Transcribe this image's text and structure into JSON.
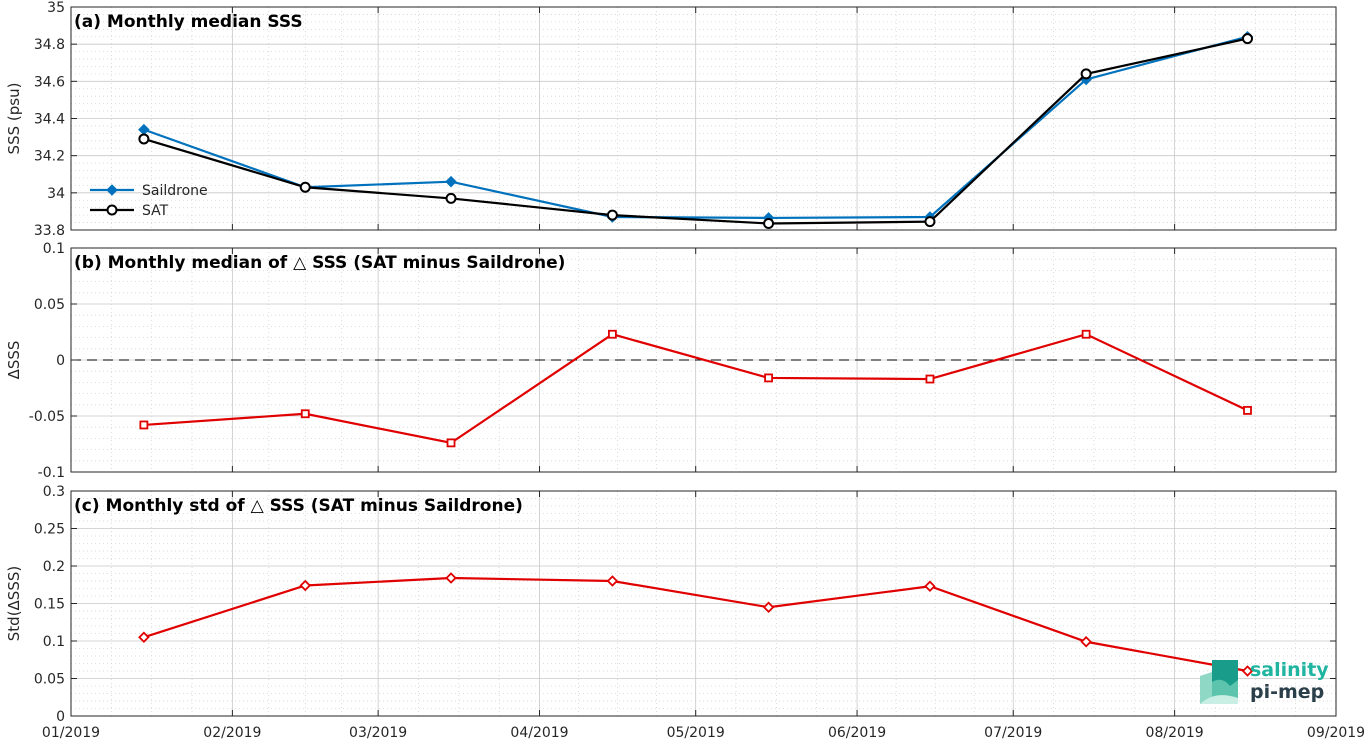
{
  "chart_data": [
    {
      "type": "line",
      "title": "(a) Monthly median SSS",
      "ylabel": "SSS (psu)",
      "xlabel": "",
      "ylim": [
        33.8,
        35
      ],
      "yticks": [
        33.8,
        34,
        34.2,
        34.4,
        34.6,
        34.8,
        35
      ],
      "ytick_labels": [
        "33.8",
        "34",
        "34.2",
        "34.4",
        "34.6",
        "34.8",
        "35"
      ],
      "grid": true,
      "legend": "left",
      "x": [
        "2019-01-15",
        "2019-02-15",
        "2019-03-15",
        "2019-04-15",
        "2019-05-15",
        "2019-06-15",
        "2019-07-15",
        "2019-08-15"
      ],
      "series": [
        {
          "name": "Saildrone",
          "color": "#0072BD",
          "marker": "diamond",
          "values": [
            34.34,
            34.03,
            34.06,
            33.87,
            33.865,
            33.87,
            34.61,
            34.84
          ]
        },
        {
          "name": "SAT",
          "color": "#000000",
          "marker": "circle",
          "values": [
            34.29,
            34.03,
            33.97,
            33.88,
            33.835,
            33.845,
            34.64,
            34.83
          ]
        }
      ]
    },
    {
      "type": "line",
      "title": "(b) Monthly median of △ SSS (SAT minus Saildrone)",
      "ylabel": "ΔSSS",
      "xlabel": "",
      "ylim": [
        -0.1,
        0.1
      ],
      "yticks": [
        -0.1,
        -0.05,
        0,
        0.05,
        0.1
      ],
      "ytick_labels": [
        "-0.1",
        "-0.05",
        "0",
        "0.05",
        "0.1"
      ],
      "grid": true,
      "zero_line": true,
      "x": [
        "2019-01-15",
        "2019-02-15",
        "2019-03-15",
        "2019-04-15",
        "2019-05-15",
        "2019-06-15",
        "2019-07-15",
        "2019-08-15"
      ],
      "series": [
        {
          "color": "#E00000",
          "marker": "square",
          "values": [
            -0.058,
            -0.048,
            -0.074,
            0.023,
            -0.016,
            -0.017,
            0.023,
            -0.045
          ]
        }
      ]
    },
    {
      "type": "line",
      "title": "(c) Monthly std of △ SSS (SAT minus Saildrone)",
      "ylabel": "Std(ΔSSS)",
      "xlabel": "",
      "ylim": [
        0,
        0.3
      ],
      "yticks": [
        0,
        0.05,
        0.1,
        0.15,
        0.2,
        0.25,
        0.3
      ],
      "ytick_labels": [
        "0",
        "0.05",
        "0.1",
        "0.15",
        "0.2",
        "0.25",
        "0.3"
      ],
      "grid": true,
      "x": [
        "2019-01-15",
        "2019-02-15",
        "2019-03-15",
        "2019-04-15",
        "2019-05-15",
        "2019-06-15",
        "2019-07-15",
        "2019-08-15"
      ],
      "series": [
        {
          "color": "#E00000",
          "marker": "diamond",
          "values": [
            0.105,
            0.174,
            0.184,
            0.18,
            0.145,
            0.173,
            0.099,
            0.06
          ]
        }
      ]
    }
  ],
  "x_axis": {
    "ticks": [
      "2019-01-01",
      "2019-02-01",
      "2019-03-01",
      "2019-04-01",
      "2019-05-01",
      "2019-06-01",
      "2019-07-01",
      "2019-08-01",
      "2019-09-01"
    ],
    "tick_labels": [
      "01/2019",
      "02/2019",
      "03/2019",
      "04/2019",
      "05/2019",
      "06/2019",
      "07/2019",
      "08/2019",
      "09/2019"
    ]
  },
  "logo": {
    "line1": "salinity",
    "line2": "pi-mep",
    "color1": "#1fb5a0",
    "color2": "#2a3f4a"
  }
}
